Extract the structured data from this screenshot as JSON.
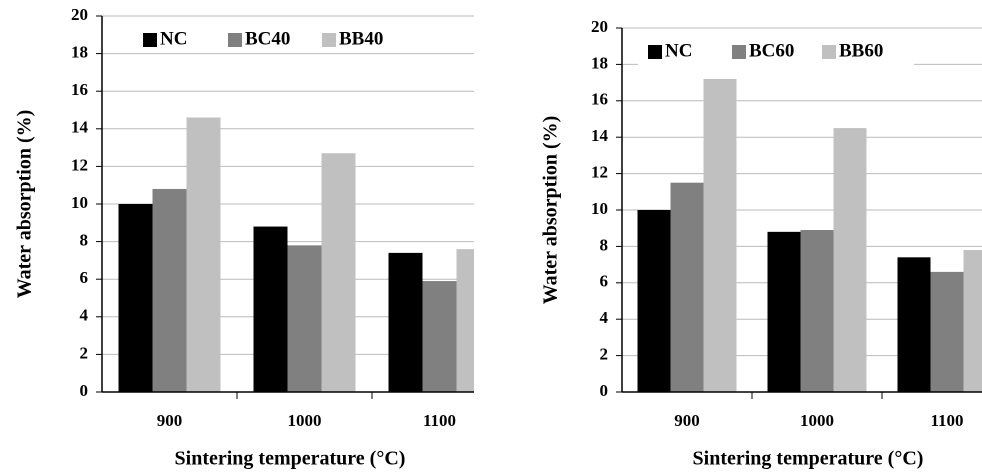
{
  "chart_data": [
    {
      "type": "bar",
      "ylabel": "Water absorption (%)",
      "xlabel": "Sintering temperature (°C)",
      "categories": [
        "900",
        "1000",
        "1100"
      ],
      "series": [
        {
          "name": "NC",
          "color": "#000000",
          "values": [
            10.0,
            8.8,
            7.4
          ]
        },
        {
          "name": "BC40",
          "color": "#808080",
          "values": [
            10.8,
            7.8,
            5.9
          ]
        },
        {
          "name": "BB40",
          "color": "#c0c0c0",
          "values": [
            14.6,
            12.7,
            7.6
          ]
        }
      ],
      "ylim": [
        0,
        20
      ],
      "yticks": [
        0,
        2,
        4,
        6,
        8,
        10,
        12,
        14,
        16,
        18,
        20
      ],
      "grid": true
    },
    {
      "type": "bar",
      "ylabel": "Water absorption (%)",
      "xlabel": "Sintering temperature (°C)",
      "categories": [
        "900",
        "1000",
        "1100"
      ],
      "series": [
        {
          "name": "NC",
          "color": "#000000",
          "values": [
            10.0,
            8.8,
            7.4
          ]
        },
        {
          "name": "BC60",
          "color": "#808080",
          "values": [
            11.5,
            8.9,
            6.6
          ]
        },
        {
          "name": "BB60",
          "color": "#c0c0c0",
          "values": [
            17.2,
            14.5,
            7.8
          ]
        }
      ],
      "ylim": [
        0,
        20
      ],
      "yticks": [
        0,
        2,
        4,
        6,
        8,
        10,
        12,
        14,
        16,
        18,
        20
      ],
      "grid": true
    }
  ]
}
